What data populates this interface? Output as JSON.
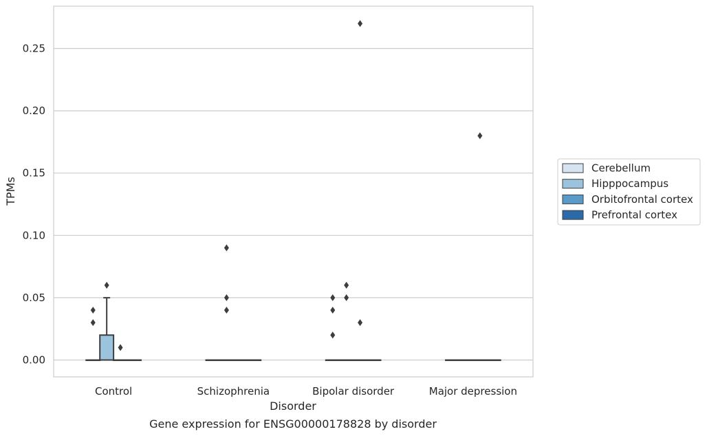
{
  "chart_data": {
    "type": "box",
    "xlabel": "Disorder",
    "ylabel": "TPMs",
    "caption": "Gene expression for ENSG00000178828 by disorder",
    "categories": [
      "Control",
      "Schizophrenia",
      "Bipolar disorder",
      "Major depression"
    ],
    "ylim": [
      -0.013,
      0.284
    ],
    "yticks": [
      0.0,
      0.05,
      0.1,
      0.15,
      0.2,
      0.25
    ],
    "ytick_labels": [
      "0.00",
      "0.05",
      "0.10",
      "0.15",
      "0.20",
      "0.25"
    ],
    "grid": "horizontal",
    "legend": {
      "placement": "right",
      "entries": [
        "Cerebellum",
        "Hipppocampus",
        "Orbitofrontal cortex",
        "Prefrontal cortex"
      ]
    },
    "series": [
      {
        "name": "Cerebellum",
        "color": "#d6e3f0",
        "boxes": [
          {
            "q1": 0,
            "median": 0,
            "q3": 0,
            "whislo": 0,
            "whishi": 0,
            "fliers": [
              0.03,
              0.04
            ]
          },
          {
            "q1": 0,
            "median": 0,
            "q3": 0,
            "whislo": 0,
            "whishi": 0,
            "fliers": []
          },
          {
            "q1": 0,
            "median": 0,
            "q3": 0,
            "whislo": 0,
            "whishi": 0,
            "fliers": [
              0.02,
              0.04,
              0.05
            ]
          },
          {
            "q1": 0,
            "median": 0,
            "q3": 0,
            "whislo": 0,
            "whishi": 0,
            "fliers": []
          }
        ]
      },
      {
        "name": "Hipppocampus",
        "color": "#9cc3dd",
        "boxes": [
          {
            "q1": 0,
            "median": 0,
            "q3": 0.02,
            "whislo": 0,
            "whishi": 0.05,
            "fliers": [
              0.06
            ]
          },
          {
            "q1": 0,
            "median": 0,
            "q3": 0,
            "whislo": 0,
            "whishi": 0,
            "fliers": [
              0.04,
              0.05,
              0.09
            ]
          },
          {
            "q1": 0,
            "median": 0,
            "q3": 0,
            "whislo": 0,
            "whishi": 0,
            "fliers": [
              0.05,
              0.06
            ]
          },
          {
            "q1": 0,
            "median": 0,
            "q3": 0,
            "whislo": 0,
            "whishi": 0,
            "fliers": []
          }
        ]
      },
      {
        "name": "Orbitofrontal cortex",
        "color": "#5a9ac8",
        "boxes": [
          {
            "q1": 0,
            "median": 0,
            "q3": 0,
            "whislo": 0,
            "whishi": 0,
            "fliers": [
              0.01
            ]
          },
          {
            "q1": 0,
            "median": 0,
            "q3": 0,
            "whislo": 0,
            "whishi": 0,
            "fliers": []
          },
          {
            "q1": 0,
            "median": 0,
            "q3": 0,
            "whislo": 0,
            "whishi": 0,
            "fliers": [
              0.03,
              0.27
            ]
          },
          {
            "q1": 0,
            "median": 0,
            "q3": 0,
            "whislo": 0,
            "whishi": 0,
            "fliers": [
              0.18
            ]
          }
        ]
      },
      {
        "name": "Prefrontal cortex",
        "color": "#2a6aa8",
        "boxes": [
          {
            "q1": 0,
            "median": 0,
            "q3": 0,
            "whislo": 0,
            "whishi": 0,
            "fliers": []
          },
          {
            "q1": 0,
            "median": 0,
            "q3": 0,
            "whislo": 0,
            "whishi": 0,
            "fliers": []
          },
          {
            "q1": 0,
            "median": 0,
            "q3": 0,
            "whislo": 0,
            "whishi": 0,
            "fliers": []
          },
          {
            "q1": 0,
            "median": 0,
            "q3": 0,
            "whislo": 0,
            "whishi": 0,
            "fliers": []
          }
        ]
      }
    ],
    "colors": {
      "grid": "#cccccc",
      "frame": "#cccccc",
      "box_edge": "#3d3d3d"
    }
  }
}
